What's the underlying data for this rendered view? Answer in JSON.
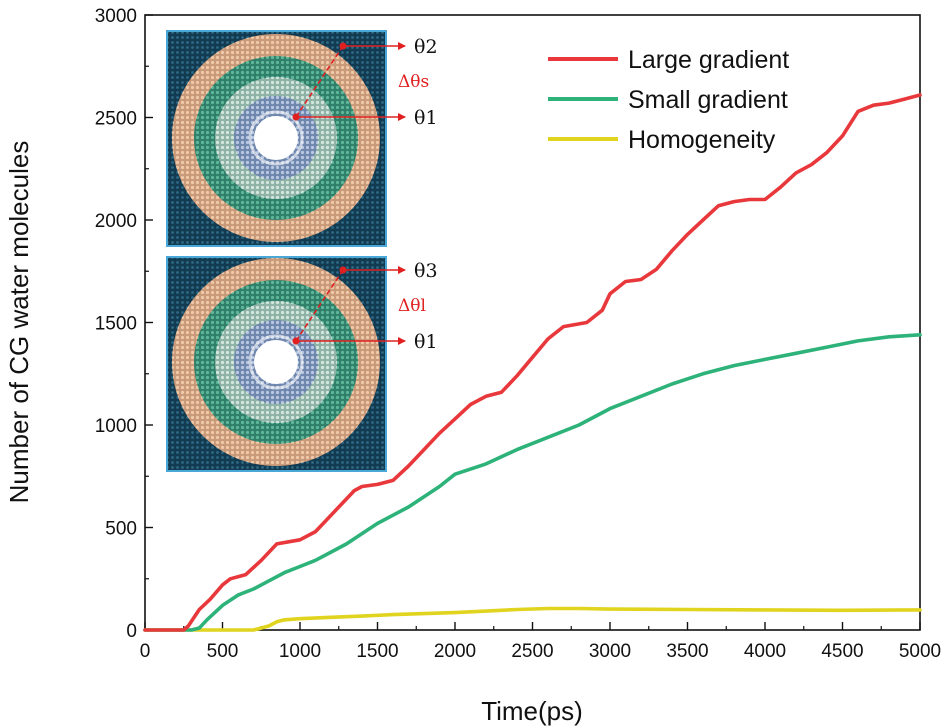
{
  "chart_data": {
    "type": "line",
    "xlabel": "Time(ps)",
    "ylabel": "Number of CG water molecules",
    "xlim": [
      0,
      5000
    ],
    "ylim": [
      0,
      3000
    ],
    "xticks": [
      0,
      500,
      1000,
      1500,
      2000,
      2500,
      3000,
      3500,
      4000,
      4500,
      5000
    ],
    "yticks": [
      0,
      500,
      1000,
      1500,
      2000,
      2500,
      3000
    ],
    "xtick_labels": [
      "0",
      "500",
      "1000",
      "1500",
      "2000",
      "2500",
      "3000",
      "3500",
      "4000",
      "4500",
      "5000"
    ],
    "ytick_labels": [
      "0",
      "500",
      "1000",
      "1500",
      "2000",
      "2500",
      "3000"
    ],
    "legend_position": "top-right",
    "series": [
      {
        "name": "Large gradient",
        "color": "#e8383b",
        "x": [
          0,
          250,
          280,
          350,
          420,
          500,
          550,
          650,
          750,
          850,
          1000,
          1100,
          1250,
          1350,
          1400,
          1500,
          1600,
          1700,
          1800,
          1900,
          2000,
          2100,
          2200,
          2300,
          2400,
          2500,
          2600,
          2700,
          2850,
          2950,
          3000,
          3100,
          3200,
          3300,
          3400,
          3500,
          3600,
          3700,
          3800,
          3900,
          4000,
          4100,
          4200,
          4300,
          4400,
          4500,
          4600,
          4700,
          4800,
          4900,
          5000
        ],
        "values": [
          0,
          0,
          20,
          100,
          150,
          220,
          250,
          270,
          340,
          420,
          440,
          480,
          600,
          680,
          700,
          710,
          730,
          800,
          880,
          960,
          1030,
          1100,
          1140,
          1160,
          1240,
          1330,
          1420,
          1480,
          1500,
          1560,
          1640,
          1700,
          1710,
          1760,
          1850,
          1930,
          2000,
          2070,
          2090,
          2100,
          2100,
          2160,
          2230,
          2270,
          2330,
          2410,
          2530,
          2560,
          2570,
          2590,
          2610
        ]
      },
      {
        "name": "Small gradient",
        "color": "#2db37a",
        "x": [
          0,
          300,
          350,
          400,
          500,
          600,
          700,
          800,
          900,
          1000,
          1100,
          1200,
          1300,
          1400,
          1500,
          1600,
          1700,
          1800,
          1900,
          2000,
          2200,
          2400,
          2600,
          2800,
          3000,
          3200,
          3400,
          3600,
          3800,
          4000,
          4200,
          4400,
          4600,
          4800,
          5000
        ],
        "values": [
          0,
          0,
          10,
          50,
          120,
          170,
          200,
          240,
          280,
          310,
          340,
          380,
          420,
          470,
          520,
          560,
          600,
          650,
          700,
          760,
          810,
          880,
          940,
          1000,
          1080,
          1140,
          1200,
          1250,
          1290,
          1320,
          1350,
          1380,
          1410,
          1430,
          1440
        ]
      },
      {
        "name": "Homogeneity",
        "color": "#e0d41e",
        "x": [
          0,
          700,
          750,
          800,
          850,
          900,
          1000,
          1200,
          1400,
          1600,
          1800,
          2000,
          2200,
          2400,
          2600,
          2800,
          3000,
          3500,
          4000,
          4500,
          5000
        ],
        "values": [
          0,
          0,
          10,
          20,
          40,
          50,
          55,
          62,
          68,
          75,
          80,
          85,
          92,
          100,
          105,
          105,
          102,
          100,
          98,
          96,
          98
        ]
      }
    ],
    "insets": [
      {
        "name": "large-gradient-model",
        "outer_label": "θ2",
        "delta_label": "Δθs",
        "inner_label": "θ1"
      },
      {
        "name": "small-gradient-model",
        "outer_label": "θ3",
        "delta_label": "Δθl",
        "inner_label": "θ1"
      }
    ]
  }
}
